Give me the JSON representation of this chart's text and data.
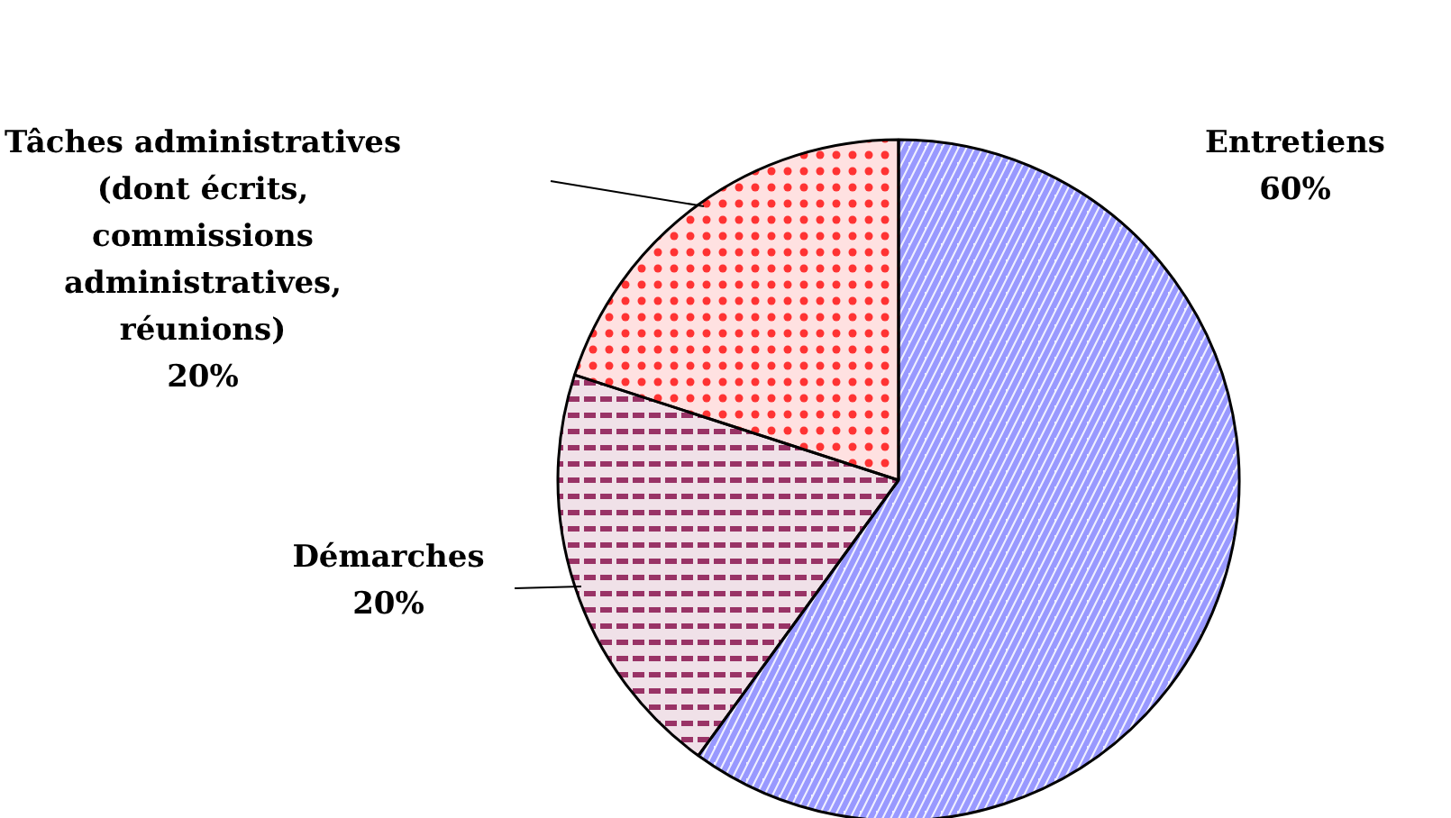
{
  "chart_data": {
    "type": "pie",
    "categories": [
      "Entretiens",
      "Démarches",
      "Tâches administratives\n(dont écrits,\ncommissions\nadministratives,\nréunions)"
    ],
    "values": [
      60,
      20,
      20
    ],
    "colors": [
      "#9999ff",
      "#993366",
      "#ff3333"
    ],
    "value_labels": [
      "60%",
      "20%",
      "20%"
    ]
  }
}
